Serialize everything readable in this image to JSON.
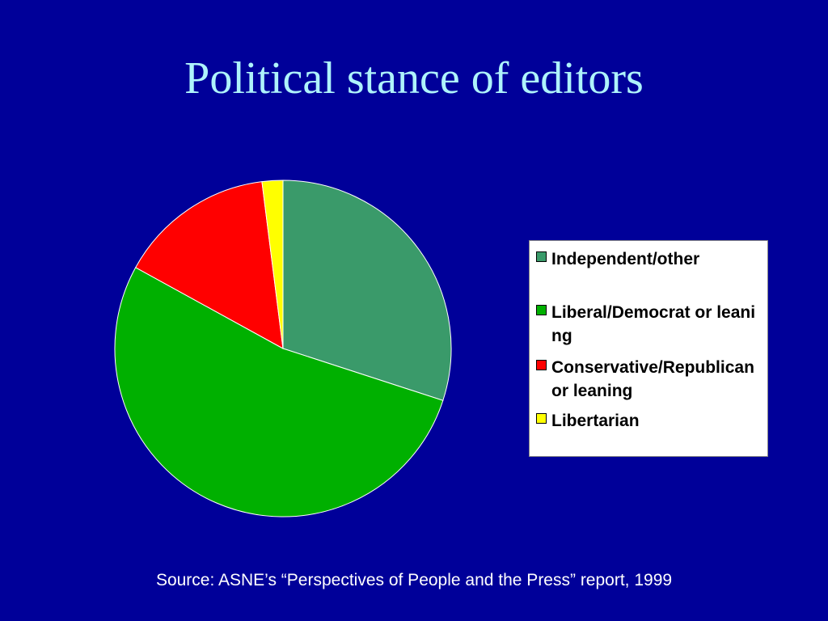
{
  "slide": {
    "title": "Political stance of editors",
    "source": "Source: ASNE’s “Perspectives of People and the Press” report, 1999"
  },
  "chart_data": {
    "type": "pie",
    "title": "",
    "categories": [
      "Independent/other",
      "Liberal/Democrat or leaning",
      "Conservative/Republican or leaning",
      "Libertarian"
    ],
    "values": [
      30,
      53,
      15,
      2
    ],
    "unit": "%",
    "colors": [
      "#3a9a6a",
      "#00b000",
      "#ff0000",
      "#ffff00"
    ],
    "legend_position": "right",
    "start_angle": "12 o'clock",
    "direction": "clockwise"
  },
  "legend": {
    "items": [
      {
        "label": "Independent/other"
      },
      {
        "label": "Liberal/Democrat or leaning"
      },
      {
        "label": "Conservative/Republican or leaning"
      },
      {
        "label": "Libertarian"
      }
    ]
  }
}
